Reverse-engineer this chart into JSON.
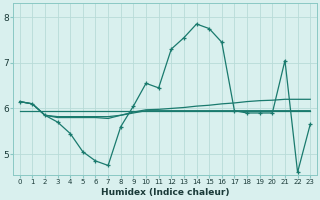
{
  "title": "",
  "xlabel": "Humidex (Indice chaleur)",
  "ylabel": "",
  "background_color": "#d9f0ee",
  "line_color": "#1a7a6e",
  "grid_color": "#b8dbd8",
  "x_values": [
    0,
    1,
    2,
    3,
    4,
    5,
    6,
    7,
    8,
    9,
    10,
    11,
    12,
    13,
    14,
    15,
    16,
    17,
    18,
    19,
    20,
    21,
    22,
    23
  ],
  "series1": [
    6.15,
    6.1,
    5.85,
    5.7,
    5.45,
    5.05,
    4.85,
    4.75,
    5.6,
    6.05,
    6.55,
    6.45,
    7.3,
    7.55,
    7.85,
    7.75,
    7.45,
    5.95,
    5.9,
    5.9,
    5.9,
    7.05,
    4.6,
    5.65
  ],
  "series2": [
    6.15,
    6.1,
    5.85,
    5.8,
    5.8,
    5.8,
    5.8,
    5.78,
    5.85,
    5.92,
    5.97,
    5.98,
    6.0,
    6.02,
    6.05,
    6.07,
    6.1,
    6.12,
    6.15,
    6.17,
    6.18,
    6.2,
    6.2,
    6.2
  ],
  "series3": [
    6.15,
    6.1,
    5.85,
    5.82,
    5.82,
    5.82,
    5.82,
    5.82,
    5.85,
    5.9,
    5.95,
    5.95,
    5.95,
    5.95,
    5.95,
    5.95,
    5.95,
    5.95,
    5.95,
    5.95,
    5.95,
    5.95,
    5.95,
    5.95
  ],
  "series4": [
    5.95,
    5.95,
    5.95,
    5.95,
    5.95,
    5.95,
    5.95,
    5.95,
    5.95,
    5.95,
    5.95,
    5.95,
    5.95,
    5.95,
    5.95,
    5.95,
    5.95,
    5.95,
    5.95,
    5.95,
    5.95,
    5.95,
    5.95,
    5.95
  ],
  "ylim": [
    4.55,
    8.3
  ],
  "yticks": [
    5,
    6,
    7,
    8
  ],
  "xticks": [
    0,
    1,
    2,
    3,
    4,
    5,
    6,
    7,
    8,
    9,
    10,
    11,
    12,
    13,
    14,
    15,
    16,
    17,
    18,
    19,
    20,
    21,
    22,
    23
  ]
}
